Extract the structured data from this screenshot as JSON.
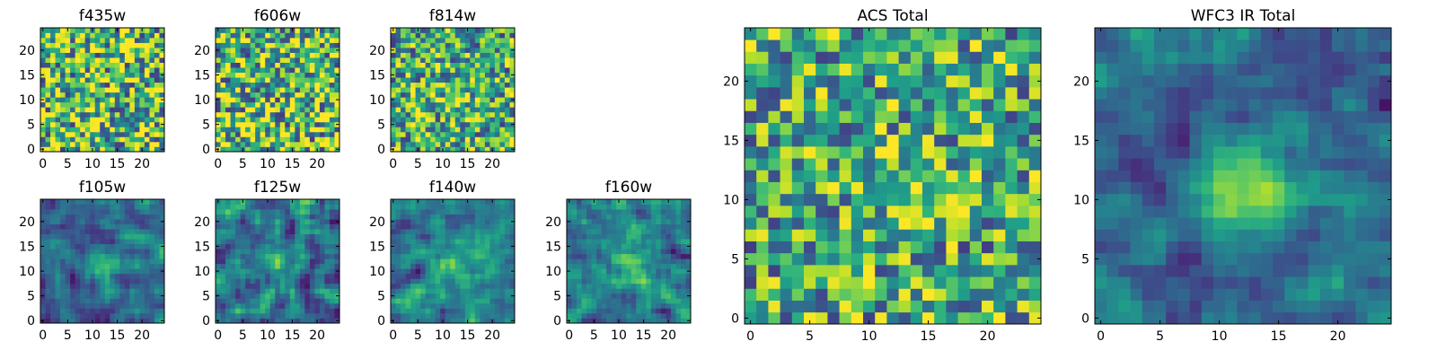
{
  "chart_data": [
    {
      "type": "heatmap",
      "title": "f435w",
      "grid_size": 25,
      "colormap": "viridis",
      "xlim": [
        0,
        24
      ],
      "ylim": [
        0,
        24
      ],
      "xticks": [
        0,
        5,
        10,
        15,
        20
      ],
      "yticks": [
        0,
        5,
        10,
        15,
        20
      ],
      "pattern": "noise",
      "source_bump": 0.0
    },
    {
      "type": "heatmap",
      "title": "f606w",
      "grid_size": 25,
      "colormap": "viridis",
      "xlim": [
        0,
        24
      ],
      "ylim": [
        0,
        24
      ],
      "xticks": [
        0,
        5,
        10,
        15,
        20
      ],
      "yticks": [
        0,
        5,
        10,
        15,
        20
      ],
      "pattern": "noise",
      "source_bump": 0.0
    },
    {
      "type": "heatmap",
      "title": "f814w",
      "grid_size": 25,
      "colormap": "viridis",
      "xlim": [
        0,
        24
      ],
      "ylim": [
        0,
        24
      ],
      "xticks": [
        0,
        5,
        10,
        15,
        20
      ],
      "yticks": [
        0,
        5,
        10,
        15,
        20
      ],
      "pattern": "noise",
      "source_bump": 0.15
    },
    {
      "type": "heatmap",
      "title": "f105w",
      "grid_size": 25,
      "colormap": "viridis",
      "xlim": [
        0,
        24
      ],
      "ylim": [
        0,
        24
      ],
      "xticks": [
        0,
        5,
        10,
        15,
        20
      ],
      "yticks": [
        0,
        5,
        10,
        15,
        20
      ],
      "pattern": "smooth",
      "source_bump": 0.35
    },
    {
      "type": "heatmap",
      "title": "f125w",
      "grid_size": 25,
      "colormap": "viridis",
      "xlim": [
        0,
        24
      ],
      "ylim": [
        0,
        24
      ],
      "xticks": [
        0,
        5,
        10,
        15,
        20
      ],
      "yticks": [
        0,
        5,
        10,
        15,
        20
      ],
      "pattern": "smooth",
      "source_bump": 0.25
    },
    {
      "type": "heatmap",
      "title": "f140w",
      "grid_size": 25,
      "colormap": "viridis",
      "xlim": [
        0,
        24
      ],
      "ylim": [
        0,
        24
      ],
      "xticks": [
        0,
        5,
        10,
        15,
        20
      ],
      "yticks": [
        0,
        5,
        10,
        15,
        20
      ],
      "pattern": "smooth",
      "source_bump": 0.3
    },
    {
      "type": "heatmap",
      "title": "f160w",
      "grid_size": 25,
      "colormap": "viridis",
      "xlim": [
        0,
        24
      ],
      "ylim": [
        0,
        24
      ],
      "xticks": [
        0,
        5,
        10,
        15,
        20
      ],
      "yticks": [
        0,
        5,
        10,
        15,
        20
      ],
      "pattern": "smooth",
      "source_bump": 0.3
    },
    {
      "type": "heatmap",
      "title": "ACS Total",
      "grid_size": 25,
      "colormap": "viridis",
      "xlim": [
        0,
        24
      ],
      "ylim": [
        0,
        24
      ],
      "xticks": [
        0,
        5,
        10,
        15,
        20
      ],
      "yticks": [
        0,
        5,
        10,
        15,
        20
      ],
      "pattern": "noise",
      "source_bump": 0.15
    },
    {
      "type": "heatmap",
      "title": "WFC3 IR Total",
      "grid_size": 25,
      "colormap": "viridis",
      "xlim": [
        0,
        24
      ],
      "ylim": [
        0,
        24
      ],
      "xticks": [
        0,
        5,
        10,
        15,
        20
      ],
      "yticks": [
        0,
        5,
        10,
        15,
        20
      ],
      "pattern": "smooth",
      "source_bump": 0.45
    }
  ]
}
